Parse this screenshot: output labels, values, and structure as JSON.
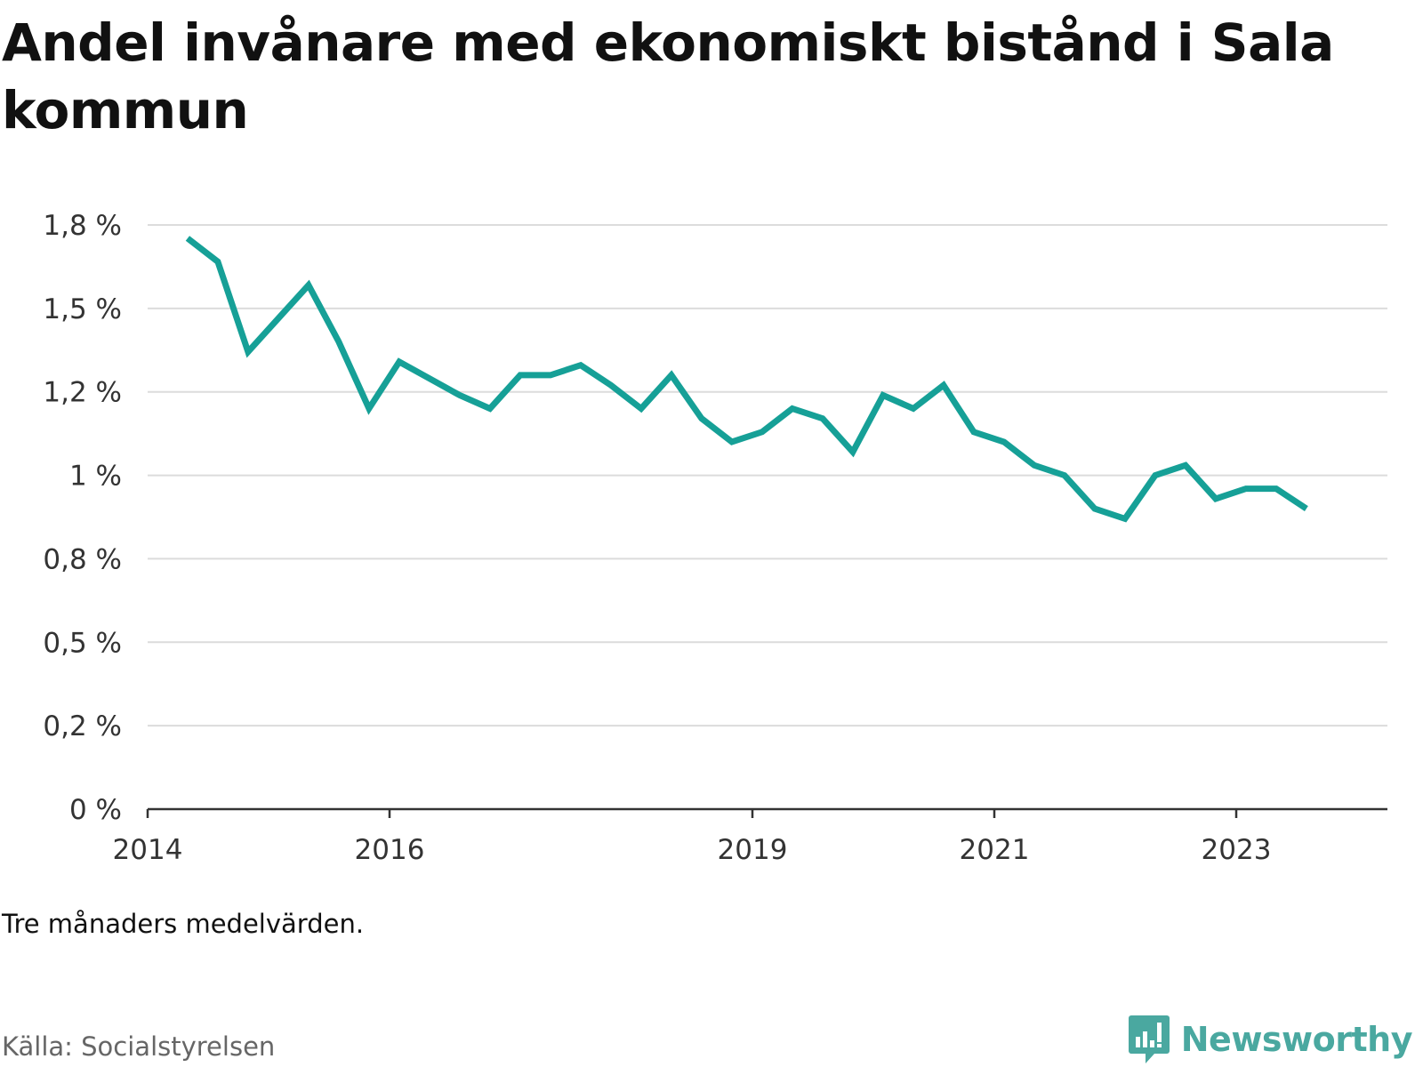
{
  "chart_data": {
    "type": "line",
    "title": "Andel invånare med ekonomiskt bistånd i Sala kommun",
    "xlabel": "",
    "ylabel": "",
    "xlim": [
      2014.0,
      2024.25
    ],
    "ylim": [
      0,
      1.75
    ],
    "x_ticks": [
      {
        "value": 2014,
        "label": "2014"
      },
      {
        "value": 2016,
        "label": "2016"
      },
      {
        "value": 2019,
        "label": "2019"
      },
      {
        "value": 2021,
        "label": "2021"
      },
      {
        "value": 2023,
        "label": "2023"
      }
    ],
    "y_ticks": [
      {
        "value": 0,
        "label": "0 %"
      },
      {
        "value": 0.25,
        "label": "0,2 %"
      },
      {
        "value": 0.5,
        "label": "0,5 %"
      },
      {
        "value": 0.75,
        "label": "0,8 %"
      },
      {
        "value": 1.0,
        "label": "1 %"
      },
      {
        "value": 1.25,
        "label": "1,2 %"
      },
      {
        "value": 1.5,
        "label": "1,5 %"
      },
      {
        "value": 1.75,
        "label": "1,8 %"
      }
    ],
    "grid": true,
    "legend": "none",
    "series": [
      {
        "color": "#16a097",
        "x": [
          2014.33,
          2014.58,
          2014.83,
          2015.08,
          2015.33,
          2015.58,
          2015.83,
          2016.08,
          2016.33,
          2016.58,
          2016.83,
          2017.08,
          2017.33,
          2017.58,
          2017.83,
          2018.08,
          2018.33,
          2018.58,
          2018.83,
          2019.08,
          2019.33,
          2019.58,
          2019.83,
          2020.08,
          2020.33,
          2020.58,
          2020.83,
          2021.08,
          2021.33,
          2021.58,
          2021.83,
          2022.08,
          2022.33,
          2022.58,
          2022.83,
          2023.08,
          2023.33,
          2023.58
        ],
        "y": [
          1.71,
          1.64,
          1.37,
          1.47,
          1.57,
          1.4,
          1.2,
          1.34,
          1.29,
          1.24,
          1.2,
          1.3,
          1.3,
          1.33,
          1.27,
          1.2,
          1.3,
          1.17,
          1.1,
          1.13,
          1.2,
          1.17,
          1.07,
          1.24,
          1.2,
          1.27,
          1.13,
          1.1,
          1.03,
          1.0,
          0.9,
          0.87,
          1.0,
          1.03,
          0.93,
          0.96,
          0.96,
          0.9
        ]
      }
    ]
  },
  "note": "Tre månaders medelvärden.",
  "source": "Källa: Socialstyrelsen",
  "brand": {
    "name": "Newsworthy",
    "color": "#4aa8a0",
    "icon": "newsworthy-chart-bubble-icon"
  }
}
